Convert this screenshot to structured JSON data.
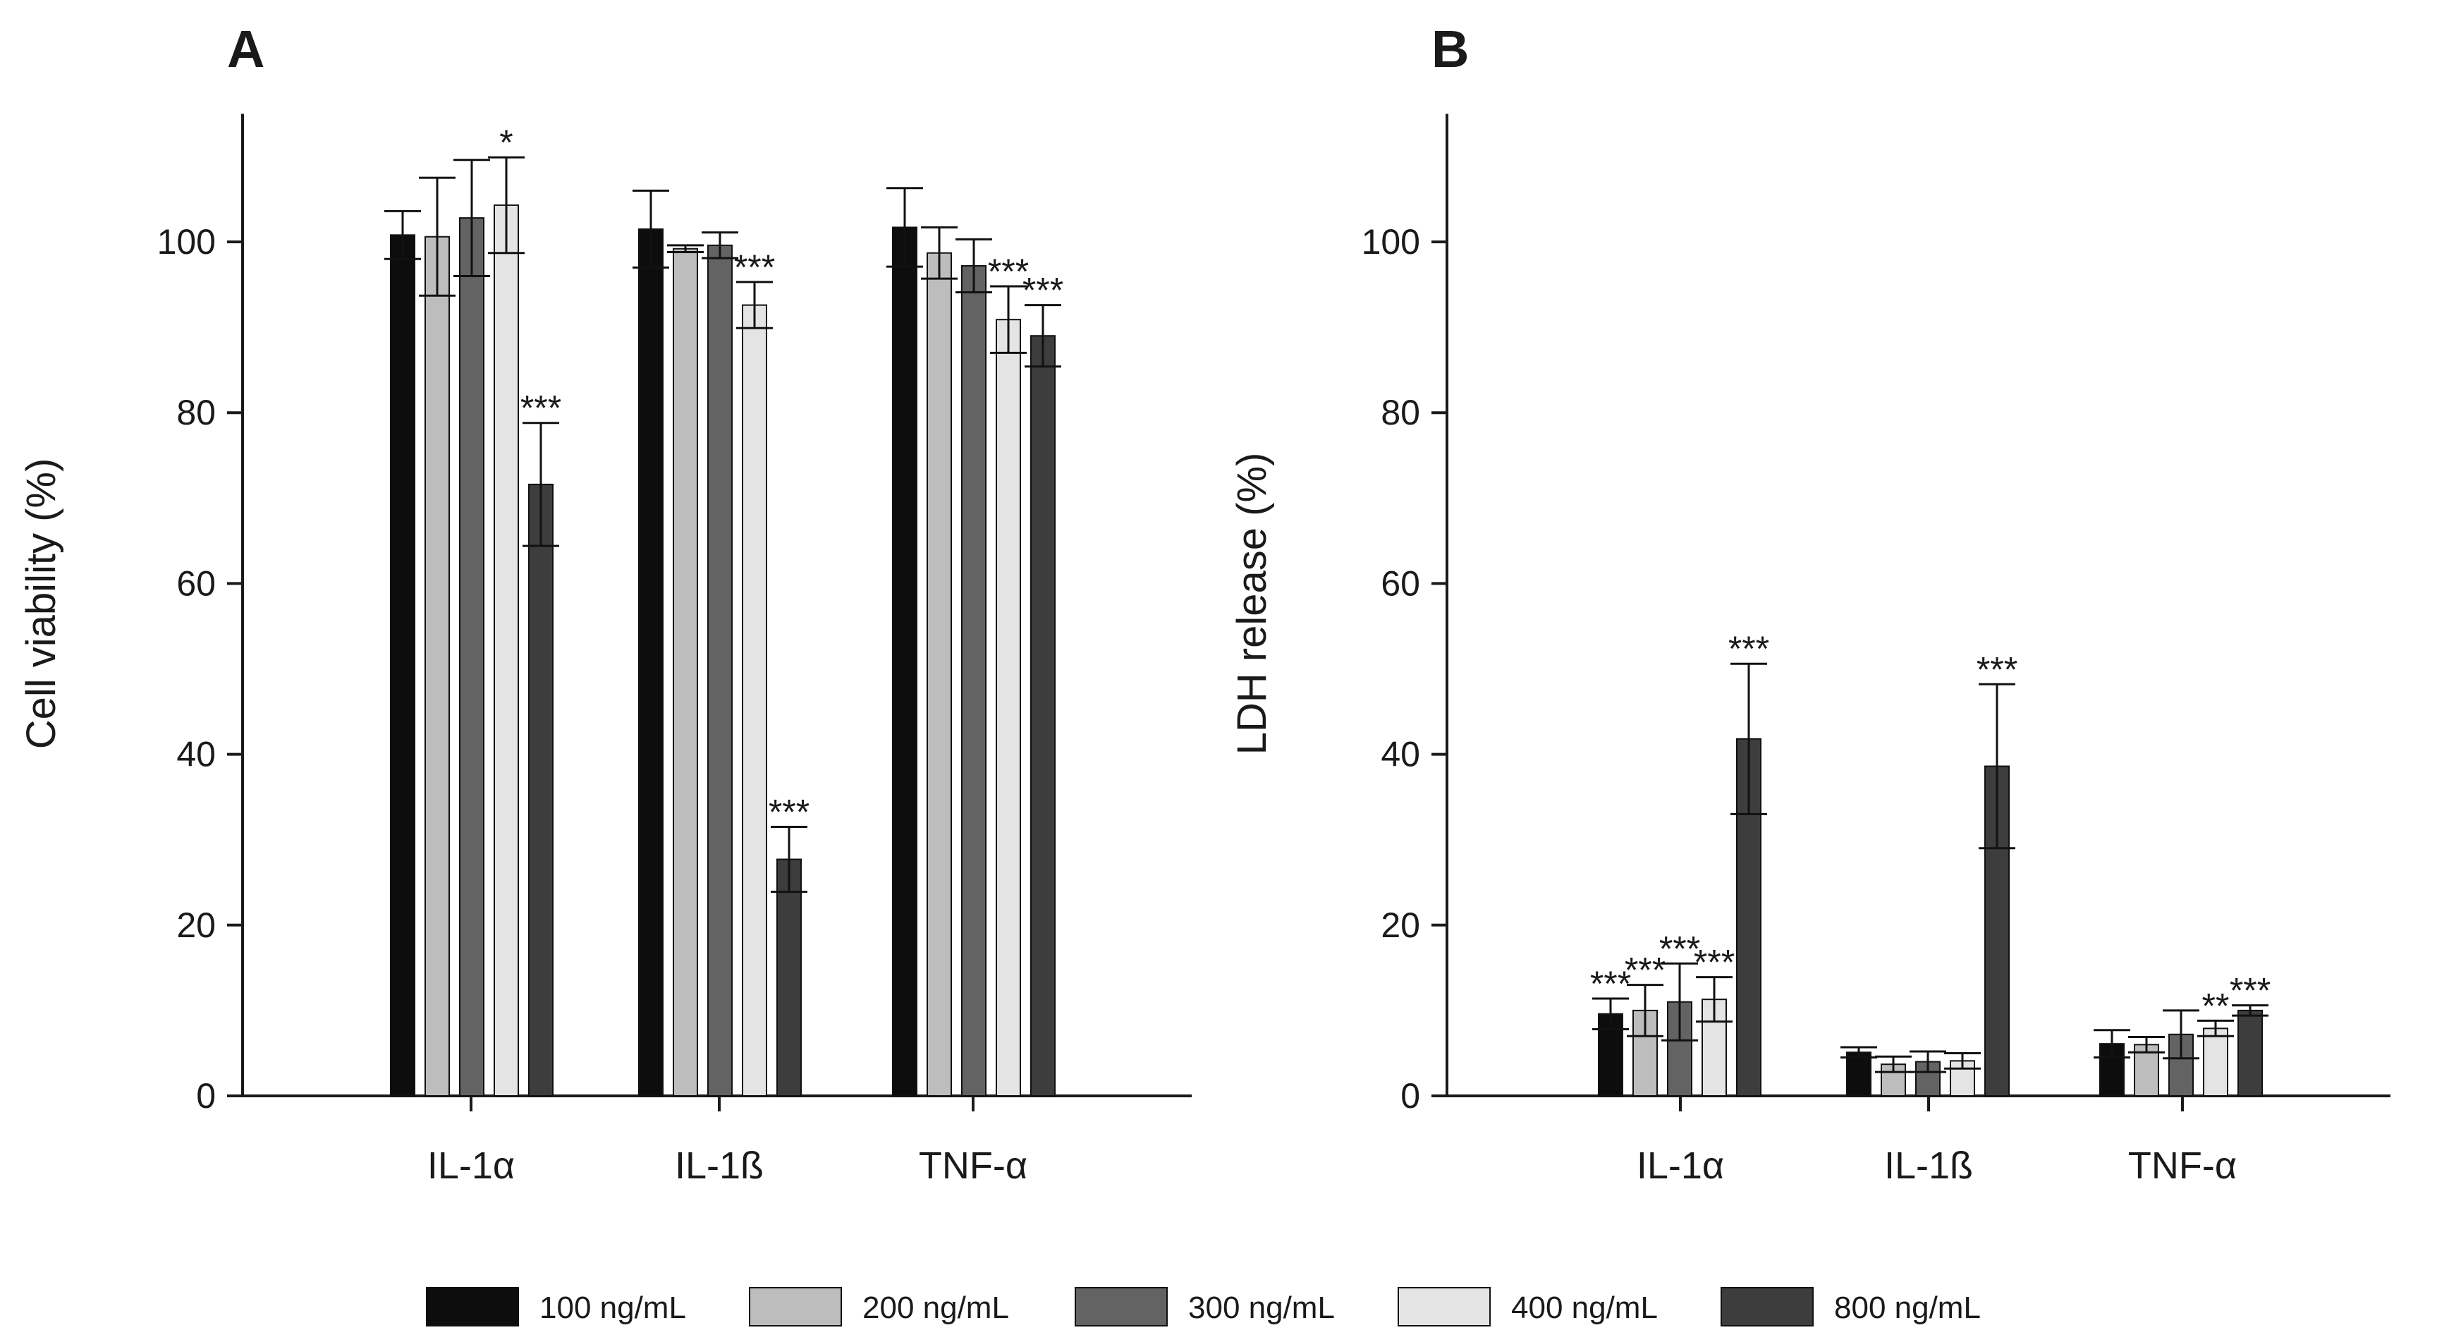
{
  "colors": {
    "c100": "#0d0d0d",
    "c200": "#bdbdbd",
    "c300": "#636363",
    "c400": "#e4e4e4",
    "c800": "#3d3d3d",
    "axis": "#1a1a1a"
  },
  "legend": {
    "entries": [
      {
        "label": "100 ng/mL",
        "color_key": "c100"
      },
      {
        "label": "200 ng/mL",
        "color_key": "c200"
      },
      {
        "label": "300 ng/mL",
        "color_key": "c300"
      },
      {
        "label": "400 ng/mL",
        "color_key": "c400"
      },
      {
        "label": "800 ng/mL",
        "color_key": "c800"
      }
    ]
  },
  "chart_data": [
    {
      "type": "bar",
      "panel": "A",
      "title": "",
      "xlabel": "",
      "ylabel": "Cell viability (%)",
      "ylim": [
        0,
        115
      ],
      "yticks": [
        0,
        20,
        40,
        60,
        80,
        100
      ],
      "ytick_labels": [
        "0",
        "20",
        "40",
        "60",
        "80",
        "100"
      ],
      "categories": [
        "IL-1α",
        "IL-1ß",
        "TNF-α"
      ],
      "series": [
        {
          "name": "100 ng/mL",
          "values": [
            100.8,
            101.5,
            101.7
          ],
          "errors": [
            2.8,
            4.5,
            4.6
          ],
          "significance": [
            "",
            "",
            ""
          ]
        },
        {
          "name": "200 ng/mL",
          "values": [
            100.6,
            99.2,
            98.7
          ],
          "errors": [
            6.9,
            0.4,
            3.0
          ],
          "significance": [
            "",
            "",
            ""
          ]
        },
        {
          "name": "300 ng/mL",
          "values": [
            102.8,
            99.6,
            97.2
          ],
          "errors": [
            6.8,
            1.5,
            3.1
          ],
          "significance": [
            "",
            "",
            ""
          ]
        },
        {
          "name": "400 ng/mL",
          "values": [
            104.3,
            92.6,
            90.9
          ],
          "errors": [
            5.6,
            2.7,
            3.9
          ],
          "significance": [
            "*",
            "***",
            "***"
          ]
        },
        {
          "name": "800 ng/mL",
          "values": [
            71.6,
            27.7,
            89.0
          ],
          "errors": [
            7.2,
            3.8,
            3.6
          ],
          "significance": [
            "***",
            "***",
            "***"
          ]
        }
      ]
    },
    {
      "type": "bar",
      "panel": "B",
      "title": "",
      "xlabel": "",
      "ylabel": "LDH release (%)",
      "ylim": [
        0,
        115
      ],
      "yticks": [
        0,
        20,
        40,
        60,
        80,
        100
      ],
      "ytick_labels": [
        "0",
        "20",
        "40",
        "60",
        "80",
        "100"
      ],
      "categories": [
        "IL-1α",
        "IL-1ß",
        "TNF-α"
      ],
      "series": [
        {
          "name": "100 ng/mL",
          "values": [
            9.6,
            5.1,
            6.1
          ],
          "errors": [
            1.8,
            0.6,
            1.6
          ],
          "significance": [
            "***",
            "",
            ""
          ]
        },
        {
          "name": "200 ng/mL",
          "values": [
            10.0,
            3.7,
            6.0
          ],
          "errors": [
            3.0,
            0.9,
            0.9
          ],
          "significance": [
            "***",
            "",
            ""
          ]
        },
        {
          "name": "300 ng/mL",
          "values": [
            11.0,
            4.0,
            7.2
          ],
          "errors": [
            4.5,
            1.2,
            2.8
          ],
          "significance": [
            "***",
            "",
            ""
          ]
        },
        {
          "name": "400 ng/mL",
          "values": [
            11.3,
            4.1,
            7.9
          ],
          "errors": [
            2.6,
            0.9,
            0.9
          ],
          "significance": [
            "***",
            "",
            "**"
          ]
        },
        {
          "name": "800 ng/mL",
          "values": [
            41.8,
            38.6,
            10.0
          ],
          "errors": [
            8.8,
            9.6,
            0.6
          ],
          "significance": [
            "***",
            "***",
            "***"
          ]
        }
      ]
    }
  ]
}
